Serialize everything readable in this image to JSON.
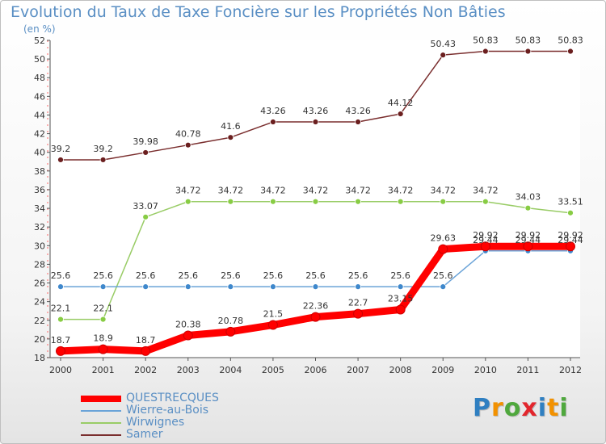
{
  "chart_data": {
    "type": "line",
    "title": "Evolution du Taux de Taxe Foncière sur les Propriétés Non Bâties",
    "subtitle": "(en %)",
    "x": [
      "2000",
      "2001",
      "2002",
      "2003",
      "2004",
      "2005",
      "2006",
      "2007",
      "2008",
      "2009",
      "2010",
      "2011",
      "2012"
    ],
    "ylim": [
      18,
      52
    ],
    "yticks": [
      "18",
      "20",
      "22",
      "24",
      "26",
      "28",
      "30",
      "32",
      "34",
      "36",
      "38",
      "40",
      "42",
      "44",
      "46",
      "48",
      "50",
      "52"
    ],
    "grid": false,
    "legend_position": "bottom-left",
    "series": [
      {
        "name": "QUESTRECQUES",
        "color": "#ff0000",
        "values": [
          18.7,
          18.9,
          18.7,
          20.38,
          20.78,
          21.5,
          22.36,
          22.7,
          23.15,
          29.63,
          29.92,
          29.92,
          29.92
        ],
        "labels": [
          "18.7",
          "18.9",
          "18.7",
          "20.38",
          "20.78",
          "21.5",
          "22.36",
          "22.7",
          "23.15",
          "29.63",
          "29.92",
          "29.92",
          "29.92"
        ]
      },
      {
        "name": "Wierre-au-Bois",
        "color": "#6aa3d8",
        "values": [
          25.6,
          25.6,
          25.6,
          25.6,
          25.6,
          25.6,
          25.6,
          25.6,
          25.6,
          25.6,
          29.44,
          29.44,
          29.44
        ],
        "labels": [
          "25.6",
          "25.6",
          "25.6",
          "25.6",
          "25.6",
          "25.6",
          "25.6",
          "25.6",
          "25.6",
          "25.6",
          "29.44",
          "29.44",
          "29.44"
        ]
      },
      {
        "name": "Wirwignes",
        "color": "#99cc66",
        "values": [
          22.1,
          22.1,
          33.07,
          34.72,
          34.72,
          34.72,
          34.72,
          34.72,
          34.72,
          34.72,
          34.72,
          34.03,
          33.51
        ],
        "labels": [
          "22.1",
          "22.1",
          "33.07",
          "34.72",
          "34.72",
          "34.72",
          "34.72",
          "34.72",
          "34.72",
          "34.72",
          "34.72",
          "34.03",
          "33.51"
        ]
      },
      {
        "name": "Samer",
        "color": "#7a2e2e",
        "values": [
          39.2,
          39.2,
          39.98,
          40.78,
          41.6,
          43.26,
          43.26,
          43.26,
          44.12,
          50.43,
          50.83,
          50.83,
          50.83
        ],
        "labels": [
          "39.2",
          "39.2",
          "39.98",
          "40.78",
          "41.6",
          "43.26",
          "43.26",
          "43.26",
          "44.12",
          "50.43",
          "50.83",
          "50.83",
          "50.83"
        ]
      }
    ]
  },
  "logo": {
    "text": "Proxiti",
    "letters": [
      "P",
      "r",
      "o",
      "x",
      "i",
      "t",
      "i"
    ],
    "colors": [
      "#2f7fc1",
      "#f29100",
      "#4fa83d",
      "#e2262d",
      "#2f7fc1",
      "#f29100",
      "#4fa83d"
    ]
  }
}
